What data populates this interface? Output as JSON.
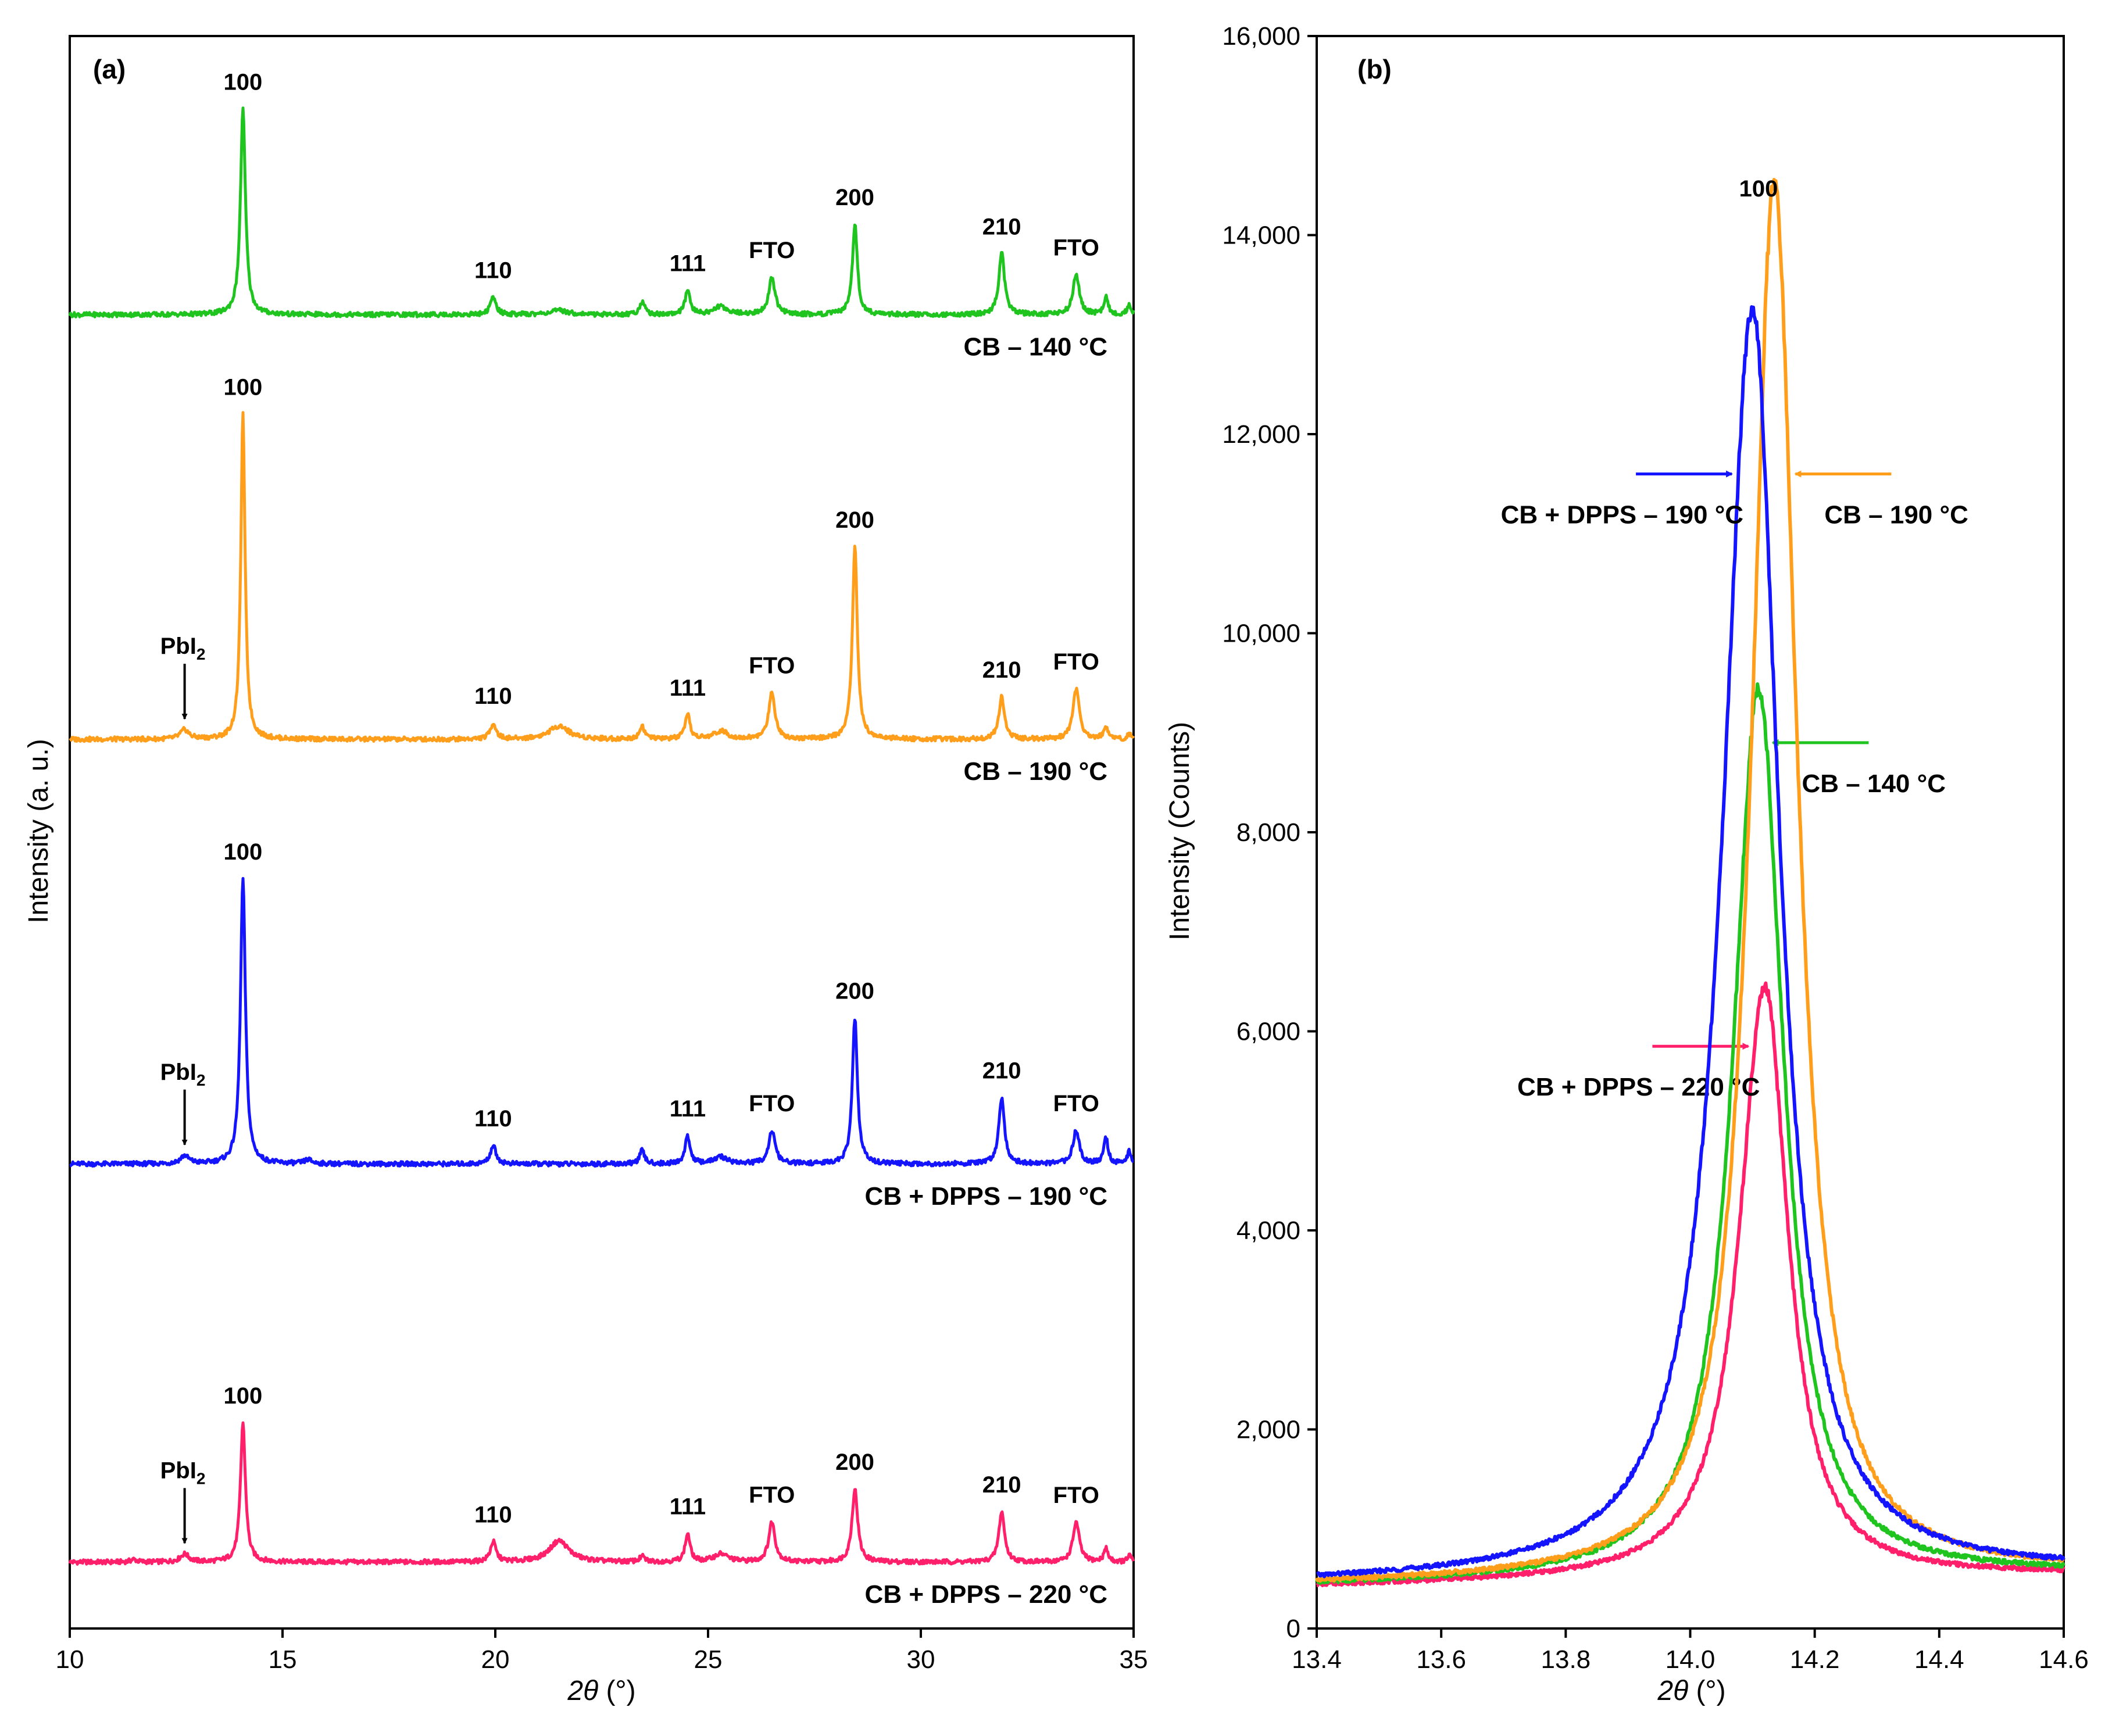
{
  "chart_data": [
    {
      "type": "line",
      "panel_label": "(a)",
      "xlabel_italic": "2θ",
      "xlabel_unit": " (°)",
      "ylabel": "Intensity (a. u.)",
      "xlim": [
        10,
        35
      ],
      "xticks": [
        "10",
        "15",
        "20",
        "25",
        "30",
        "35"
      ],
      "note": "stacked XRD patterns, arbitrary units",
      "series": [
        {
          "name": "CB + DPPS – 220 °C",
          "color": "#ff1f6b",
          "baseline": 5,
          "peaks": [
            [
              11.5,
              0.2,
              0.08
            ],
            [
              12.7,
              0.6,
              0.12
            ],
            [
              14.07,
              10.5,
              0.07
            ],
            [
              19.95,
              1.5,
              0.08
            ],
            [
              21.5,
              1.6,
              0.28
            ],
            [
              23.45,
              0.4,
              0.07
            ],
            [
              24.52,
              2.1,
              0.07
            ],
            [
              25.3,
              0.6,
              0.2
            ],
            [
              26.5,
              3.0,
              0.09
            ],
            [
              28.45,
              5.5,
              0.08
            ],
            [
              31.9,
              3.8,
              0.08
            ],
            [
              33.65,
              3.0,
              0.09
            ],
            [
              34.35,
              1.0,
              0.06
            ],
            [
              34.9,
              0.5,
              0.05
            ]
          ],
          "labels": [
            {
              "text": "100",
              "x": 14.07,
              "dy": 1.0
            },
            {
              "text": "110",
              "x": 19.95,
              "dy": 1.0
            },
            {
              "text": "111",
              "x": 24.52,
              "dy": 1.0
            },
            {
              "text": "FTO",
              "x": 26.5,
              "dy": 1.0
            },
            {
              "text": "200",
              "x": 28.45,
              "dy": 1.0
            },
            {
              "text": "210",
              "x": 31.9,
              "dy": 1.0
            },
            {
              "text": "FTO",
              "x": 33.65,
              "dy": 1.0
            }
          ],
          "pbi2": {
            "main": "PbI",
            "sub": "2",
            "x": 12.7
          },
          "tag": "CB + DPPS – 220 °C"
        },
        {
          "name": "CB + DPPS – 190 °C",
          "color": "#1414ff",
          "baseline": 35,
          "peaks": [
            [
              12.7,
              0.6,
              0.12
            ],
            [
              14.07,
              21.5,
              0.07
            ],
            [
              15.6,
              0.3,
              0.1
            ],
            [
              19.95,
              1.4,
              0.08
            ],
            [
              23.45,
              1.0,
              0.07
            ],
            [
              24.52,
              2.1,
              0.07
            ],
            [
              25.3,
              0.5,
              0.2
            ],
            [
              26.5,
              2.5,
              0.09
            ],
            [
              28.45,
              11.0,
              0.07
            ],
            [
              31.9,
              5.0,
              0.08
            ],
            [
              33.65,
              2.5,
              0.09
            ],
            [
              34.35,
              2.0,
              0.06
            ],
            [
              34.9,
              1.0,
              0.05
            ]
          ],
          "labels": [
            {
              "text": "100",
              "x": 14.07,
              "dy": 1.0
            },
            {
              "text": "110",
              "x": 19.95,
              "dy": 1.0
            },
            {
              "text": "111",
              "x": 24.52,
              "dy": 1.0
            },
            {
              "text": "FTO",
              "x": 26.5,
              "dy": 1.0
            },
            {
              "text": "200",
              "x": 28.45,
              "dy": 1.0
            },
            {
              "text": "210",
              "x": 31.9,
              "dy": 1.0
            },
            {
              "text": "FTO",
              "x": 33.65,
              "dy": 1.0
            }
          ],
          "pbi2": {
            "main": "PbI",
            "sub": "2",
            "x": 12.7
          },
          "tag": "CB + DPPS – 190 °C"
        },
        {
          "name": "CB – 190 °C",
          "color": "#ff9e1b",
          "baseline": 67,
          "peaks": [
            [
              12.7,
              0.7,
              0.12
            ],
            [
              14.07,
              24.5,
              0.06
            ],
            [
              19.95,
              1.2,
              0.08
            ],
            [
              21.5,
              1.0,
              0.28
            ],
            [
              23.45,
              1.0,
              0.07
            ],
            [
              24.52,
              1.8,
              0.07
            ],
            [
              25.3,
              0.6,
              0.2
            ],
            [
              26.5,
              3.5,
              0.09
            ],
            [
              28.45,
              14.5,
              0.07
            ],
            [
              31.9,
              3.2,
              0.08
            ],
            [
              33.65,
              3.8,
              0.09
            ],
            [
              34.35,
              1.0,
              0.06
            ],
            [
              34.9,
              0.4,
              0.05
            ]
          ],
          "labels": [
            {
              "text": "100",
              "x": 14.07,
              "dy": 1.0
            },
            {
              "text": "110",
              "x": 19.95,
              "dy": 1.0
            },
            {
              "text": "111",
              "x": 24.52,
              "dy": 1.0
            },
            {
              "text": "FTO",
              "x": 26.5,
              "dy": 1.0
            },
            {
              "text": "200",
              "x": 28.45,
              "dy": 1.0
            },
            {
              "text": "210",
              "x": 31.9,
              "dy": 1.0
            },
            {
              "text": "FTO",
              "x": 33.65,
              "dy": 1.0
            }
          ],
          "pbi2": {
            "main": "PbI",
            "sub": "2",
            "x": 12.7
          },
          "tag": "CB – 190 °C"
        },
        {
          "name": "CB – 140 °C",
          "color": "#1fc41f",
          "baseline": 99,
          "peaks": [
            [
              14.07,
              15.5,
              0.07
            ],
            [
              19.95,
              1.3,
              0.08
            ],
            [
              21.5,
              0.3,
              0.28
            ],
            [
              23.45,
              1.0,
              0.07
            ],
            [
              24.52,
              1.8,
              0.07
            ],
            [
              25.3,
              0.6,
              0.2
            ],
            [
              26.5,
              2.8,
              0.09
            ],
            [
              28.45,
              6.8,
              0.07
            ],
            [
              31.9,
              4.6,
              0.08
            ],
            [
              33.65,
              3.0,
              0.09
            ],
            [
              34.35,
              1.3,
              0.06
            ],
            [
              34.9,
              0.8,
              0.05
            ]
          ],
          "labels": [
            {
              "text": "100",
              "x": 14.07,
              "dy": 1.0
            },
            {
              "text": "110",
              "x": 19.95,
              "dy": 1.0
            },
            {
              "text": "111",
              "x": 24.52,
              "dy": 1.0
            },
            {
              "text": "FTO",
              "x": 26.5,
              "dy": 1.0
            },
            {
              "text": "200",
              "x": 28.45,
              "dy": 1.0
            },
            {
              "text": "210",
              "x": 31.9,
              "dy": 1.0
            },
            {
              "text": "FTO",
              "x": 33.65,
              "dy": 1.0
            }
          ],
          "tag": "CB – 140 °C"
        }
      ]
    },
    {
      "type": "line",
      "panel_label": "(b)",
      "xlabel_italic": "2θ",
      "xlabel_unit": " (°)",
      "ylabel": "Intensity (Counts)",
      "xlim": [
        13.4,
        14.6
      ],
      "ylim": [
        0,
        16000
      ],
      "xticks": [
        "13.4",
        "13.6",
        "13.8",
        "14.0",
        "14.2",
        "14.4",
        "14.6"
      ],
      "yticks": [
        "0",
        "2,000",
        "4,000",
        "6,000",
        "8,000",
        "10,000",
        "12,000",
        "14,000",
        "16,000"
      ],
      "peak_label": "100",
      "series": [
        {
          "name": "CB + DPPS – 220 °C",
          "color": "#ff1f6b",
          "center": 14.12,
          "peak": 5950,
          "base": 420,
          "gamma_left": 0.05,
          "gamma_right": 0.045,
          "label": "CB + DPPS – 220 °C",
          "label_side": "left",
          "arrow_y": 5850
        },
        {
          "name": "CB – 140 °C",
          "color": "#1fc41f",
          "center": 14.11,
          "peak": 8950,
          "base": 430,
          "gamma_left": 0.05,
          "gamma_right": 0.048,
          "label": "CB – 140 °C",
          "label_side": "right",
          "arrow_y": 8900
        },
        {
          "name": "CB – 190 °C",
          "color": "#ff9e1b",
          "center": 14.135,
          "peak": 14000,
          "base": 440,
          "gamma_left": 0.045,
          "gamma_right": 0.045,
          "label": "CB – 190 °C",
          "label_side": "right",
          "arrow_y": 11600
        },
        {
          "name": "CB + DPPS – 190 °C",
          "color": "#1414ff",
          "center": 14.1,
          "peak": 12750,
          "base": 450,
          "gamma_left": 0.058,
          "gamma_right": 0.052,
          "label": "CB + DPPS – 190 °C",
          "label_side": "left",
          "arrow_y": 11600
        }
      ]
    }
  ]
}
